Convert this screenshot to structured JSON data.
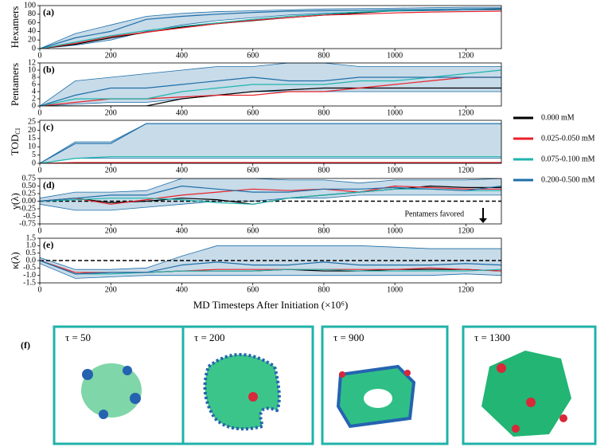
{
  "chart_data": [
    {
      "type": "line",
      "panel_label": "(a)",
      "ylabel": "Hexamers",
      "x": [
        0,
        100,
        200,
        300,
        400,
        500,
        600,
        700,
        800,
        900,
        1000,
        1100,
        1200,
        1300
      ],
      "xlim": [
        0,
        1300
      ],
      "xticks": [
        0,
        200,
        400,
        600,
        800,
        1000,
        1200
      ],
      "ylim": [
        0,
        100
      ],
      "yticks": [
        0,
        20,
        40,
        60,
        80,
        100
      ],
      "series": [
        {
          "name": "0.000 mM",
          "color": "#000000",
          "values": [
            0,
            10,
            25,
            38,
            50,
            58,
            65,
            72,
            78,
            83,
            88,
            90,
            92,
            92
          ]
        },
        {
          "name": "0.025-0.050 mM",
          "color": "#e8222a",
          "values": [
            0,
            12,
            28,
            38,
            48,
            58,
            66,
            72,
            78,
            80,
            83,
            85,
            86,
            87
          ]
        },
        {
          "name": "0.075-0.100 mM",
          "color": "#1fb5ad",
          "values": [
            0,
            15,
            30,
            42,
            52,
            60,
            68,
            75,
            80,
            85,
            88,
            90,
            92,
            93
          ]
        },
        {
          "name": "0.200-0.500 mM",
          "color": "#1f6fa8",
          "values": [
            0,
            25,
            40,
            68,
            75,
            80,
            84,
            87,
            88,
            89,
            90,
            91,
            92,
            93
          ],
          "lower": [
            0,
            8,
            20,
            40,
            55,
            65,
            72,
            78,
            82,
            85,
            87,
            88,
            89,
            90
          ],
          "upper": [
            0,
            35,
            55,
            75,
            82,
            86,
            88,
            90,
            92,
            93,
            94,
            95,
            96,
            96
          ]
        }
      ]
    },
    {
      "type": "line",
      "panel_label": "(b)",
      "ylabel": "Pentamers",
      "x": [
        0,
        100,
        200,
        300,
        400,
        500,
        600,
        700,
        800,
        900,
        1000,
        1100,
        1200,
        1300
      ],
      "xlim": [
        0,
        1300
      ],
      "xticks": [
        0,
        200,
        400,
        600,
        800,
        1000,
        1200
      ],
      "ylim": [
        0,
        12
      ],
      "yticks": [
        0,
        2,
        4,
        6,
        8,
        10,
        12
      ],
      "series": [
        {
          "name": "0.000 mM",
          "color": "#000000",
          "values": [
            0,
            0,
            0,
            0,
            2,
            3,
            4,
            4.5,
            5,
            5,
            5,
            5,
            5,
            5
          ]
        },
        {
          "name": "0.025-0.050 mM",
          "color": "#e8222a",
          "values": [
            0,
            1,
            2,
            2,
            2.5,
            3,
            3,
            4,
            4,
            5,
            6,
            7,
            8,
            8
          ]
        },
        {
          "name": "0.075-0.100 mM",
          "color": "#1fb5ad",
          "values": [
            0,
            2,
            2,
            2,
            4,
            5,
            6,
            6,
            6,
            7,
            7,
            8,
            9,
            10
          ]
        },
        {
          "name": "0.200-0.500 mM",
          "color": "#1f6fa8",
          "values": [
            0,
            3,
            5,
            5,
            6,
            7,
            8,
            7,
            7,
            8,
            8,
            8,
            8,
            8
          ],
          "lower": [
            0,
            0.5,
            1,
            1,
            2,
            3,
            4,
            4,
            4,
            4,
            4,
            4,
            4,
            4
          ],
          "upper": [
            0,
            7,
            8,
            9,
            10,
            11,
            11,
            12,
            12,
            11,
            11,
            11,
            11,
            11
          ]
        }
      ]
    },
    {
      "type": "line",
      "panel_label": "(c)",
      "ylabel": "TOD",
      "ylabel_sub": "CI",
      "x": [
        0,
        100,
        200,
        300,
        400,
        500,
        600,
        700,
        800,
        900,
        1000,
        1100,
        1200,
        1300
      ],
      "xlim": [
        0,
        1300
      ],
      "xticks": [
        0,
        200,
        400,
        600,
        800,
        1000,
        1200
      ],
      "ylim": [
        0,
        26
      ],
      "yticks": [
        0,
        5,
        10,
        15,
        20,
        25
      ],
      "series": [
        {
          "name": "0.000 mM",
          "color": "#000000",
          "values": [
            0,
            0,
            0,
            0,
            0,
            0,
            0,
            0,
            0,
            0,
            0,
            0,
            0,
            0
          ]
        },
        {
          "name": "0.025-0.050 mM",
          "color": "#e8222a",
          "values": [
            0,
            0.5,
            0.5,
            0.5,
            0.5,
            0.5,
            0.5,
            0.5,
            0.5,
            0.5,
            0.5,
            0.5,
            0.5,
            0.5
          ]
        },
        {
          "name": "0.075-0.100 mM",
          "color": "#1fb5ad",
          "values": [
            0,
            3,
            4,
            4,
            4,
            4,
            4,
            4,
            4,
            4,
            4,
            4,
            4,
            4
          ]
        },
        {
          "name": "0.200-0.500 mM",
          "color": "#1f6fa8",
          "values": [
            0,
            12,
            12,
            24,
            24,
            24,
            24,
            24,
            24,
            24,
            24,
            24,
            24,
            24
          ],
          "lower": [
            0,
            3,
            3,
            3,
            3,
            3,
            3,
            3,
            3,
            3,
            3,
            3,
            3,
            3
          ],
          "upper": [
            0,
            13,
            13,
            24,
            24,
            24,
            24,
            24,
            24,
            24,
            24,
            24,
            24,
            24
          ]
        }
      ]
    },
    {
      "type": "line",
      "panel_label": "(d)",
      "ylabel": "γ(λ)",
      "annotation": "Pentamers favored",
      "hline": 0,
      "x": [
        0,
        100,
        200,
        300,
        400,
        500,
        600,
        700,
        800,
        900,
        1000,
        1100,
        1200,
        1300
      ],
      "xlim": [
        0,
        1300
      ],
      "xticks": [
        0,
        200,
        400,
        600,
        800,
        1000,
        1200
      ],
      "ylim": [
        -0.75,
        0.75
      ],
      "yticks": [
        -0.75,
        -0.5,
        -0.25,
        {
          "value": 0,
          "label": "0.00"
        },
        0.25,
        {
          "value": 0.5,
          "label": "0.50"
        },
        0.75
      ],
      "series": [
        {
          "name": "0.000 mM",
          "color": "#000000",
          "values": [
            0,
            0.1,
            -0.05,
            0,
            0.1,
            0.05,
            -0.1,
            0.1,
            0.2,
            0.3,
            0.4,
            0.5,
            0.45,
            0.45
          ]
        },
        {
          "name": "0.025-0.050 mM",
          "color": "#e8222a",
          "values": [
            0,
            0.1,
            -0.1,
            0.05,
            0.2,
            0.3,
            0.4,
            0.35,
            0.4,
            0.3,
            0.5,
            0.45,
            0.4,
            0.4
          ]
        },
        {
          "name": "0.075-0.100 mM",
          "color": "#1fb5ad",
          "values": [
            0,
            0.05,
            0.1,
            0.1,
            0.05,
            -0.05,
            -0.1,
            0.1,
            0.2,
            0.3,
            0.4,
            0.4,
            0.35,
            0.35
          ]
        },
        {
          "name": "0.200-0.500 mM",
          "color": "#1f6fa8",
          "values": [
            0,
            0.1,
            0.2,
            0.2,
            0.5,
            0.4,
            0.3,
            0.3,
            0.4,
            0.4,
            0.45,
            0.4,
            0.35,
            0.5
          ],
          "lower": [
            -0.1,
            -0.3,
            -0.3,
            -0.2,
            -0.1,
            0,
            0,
            0.1,
            0.1,
            0.2,
            0.2,
            0.2,
            0.2,
            0.2
          ],
          "upper": [
            0.1,
            0.3,
            0.3,
            0.35,
            0.75,
            0.75,
            0.75,
            0.7,
            0.7,
            0.6,
            0.7,
            0.7,
            0.7,
            0.75
          ]
        }
      ]
    },
    {
      "type": "line",
      "panel_label": "(e)",
      "ylabel": "κ(λ)",
      "hline": 0,
      "xlabel": "MD Timesteps After Initiation (×10⁶)",
      "x": [
        0,
        100,
        200,
        300,
        400,
        500,
        600,
        700,
        800,
        900,
        1000,
        1100,
        1200,
        1300
      ],
      "xlim": [
        0,
        1300
      ],
      "xticks": [
        0,
        200,
        400,
        600,
        800,
        1000,
        1200
      ],
      "ylim": [
        -1.5,
        1.5
      ],
      "yticks": [
        -1.5,
        {
          "value": -1,
          "label": "-1.0"
        },
        -0.5,
        {
          "value": 0,
          "label": "0.0"
        },
        0.5,
        {
          "value": 1,
          "label": "1.0"
        },
        1.5
      ],
      "series": [
        {
          "name": "0.000 mM",
          "color": "#000000",
          "values": [
            0,
            -0.9,
            -0.8,
            -0.8,
            -0.7,
            -0.7,
            -0.7,
            -0.6,
            -0.7,
            -0.7,
            -0.6,
            -0.6,
            -0.6,
            -0.7
          ]
        },
        {
          "name": "0.025-0.050 mM",
          "color": "#e8222a",
          "values": [
            0,
            -0.8,
            -0.8,
            -0.8,
            -0.7,
            -0.6,
            -0.6,
            -0.6,
            -0.6,
            -0.6,
            -0.6,
            -0.5,
            -0.6,
            -0.7
          ]
        },
        {
          "name": "0.075-0.100 mM",
          "color": "#1fb5ad",
          "values": [
            0,
            -0.9,
            -0.9,
            -0.8,
            -0.7,
            -0.7,
            -0.7,
            -0.6,
            -0.6,
            -0.7,
            -0.7,
            -0.7,
            -0.7,
            -0.6
          ]
        },
        {
          "name": "0.200-0.500 mM",
          "color": "#1f6fa8",
          "values": [
            0,
            -0.9,
            -0.8,
            -0.8,
            -0.3,
            -0.1,
            -0.3,
            -0.3,
            -0.1,
            -0.3,
            -0.3,
            -0.3,
            -0.2,
            -0.3
          ],
          "lower": [
            -0.2,
            -1.2,
            -1.1,
            -1,
            -1,
            -1,
            -1,
            -1,
            -1,
            -1,
            -1,
            -1,
            -0.9,
            -1
          ],
          "upper": [
            0.2,
            -0.6,
            -0.6,
            -0.5,
            0.3,
            1,
            1,
            1,
            1,
            1,
            0.9,
            0.8,
            0.8,
            0.8
          ]
        }
      ]
    }
  ],
  "panel_f": {
    "label": "(f)",
    "frames": [
      {
        "label": "τ = 50"
      },
      {
        "label": "τ = 200"
      },
      {
        "label": "τ = 900"
      },
      {
        "label": "τ = 1300"
      }
    ]
  }
}
